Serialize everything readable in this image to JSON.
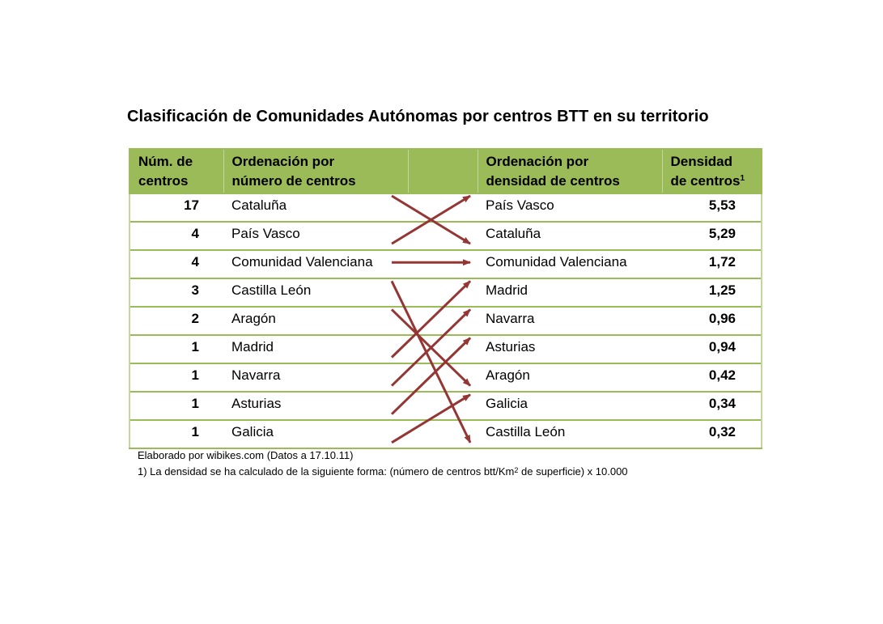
{
  "title": "Clasificación de Comunidades Autónomas por centros BTT en su territorio",
  "headers": {
    "num_line1": "Núm. de",
    "num_line2": "centros",
    "order_num_line1": "Ordenación por",
    "order_num_line2": "número de centros",
    "order_dens_line1": "Ordenación por",
    "order_dens_line2": "densidad de centros",
    "dens_line1": "Densidad",
    "dens_line2": "de centros",
    "dens_footnote_mark": "1"
  },
  "rows": [
    {
      "num": "17",
      "left": "Cataluña",
      "right": "País Vasco",
      "density": "5,53"
    },
    {
      "num": "4",
      "left": "País Vasco",
      "right": "Cataluña",
      "density": "5,29"
    },
    {
      "num": "4",
      "left": "Comunidad Valenciana",
      "right": "Comunidad Valenciana",
      "density": "1,72"
    },
    {
      "num": "3",
      "left": "Castilla León",
      "right": "Madrid",
      "density": "1,25"
    },
    {
      "num": "2",
      "left": "Aragón",
      "right": "Navarra",
      "density": "0,96"
    },
    {
      "num": "1",
      "left": "Madrid",
      "right": "Asturias",
      "density": "0,94"
    },
    {
      "num": "1",
      "left": "Navarra",
      "right": "Aragón",
      "density": "0,42"
    },
    {
      "num": "1",
      "left": "Asturias",
      "right": "Galicia",
      "density": "0,34"
    },
    {
      "num": "1",
      "left": "Galicia",
      "right": "Castilla León",
      "density": "0,32"
    }
  ],
  "notes": {
    "source": "Elaborado por wibikes.com (Datos a 17.10.11)",
    "footnote_before": "1) La densidad se ha calculado de la siguiente forma: (número de centros btt/Km",
    "footnote_sup": "2",
    "footnote_after": " de superficie) x 10.000"
  },
  "colors": {
    "header_bg": "#9bbb59",
    "border": "#9bbb59",
    "arrow": "#943634"
  }
}
